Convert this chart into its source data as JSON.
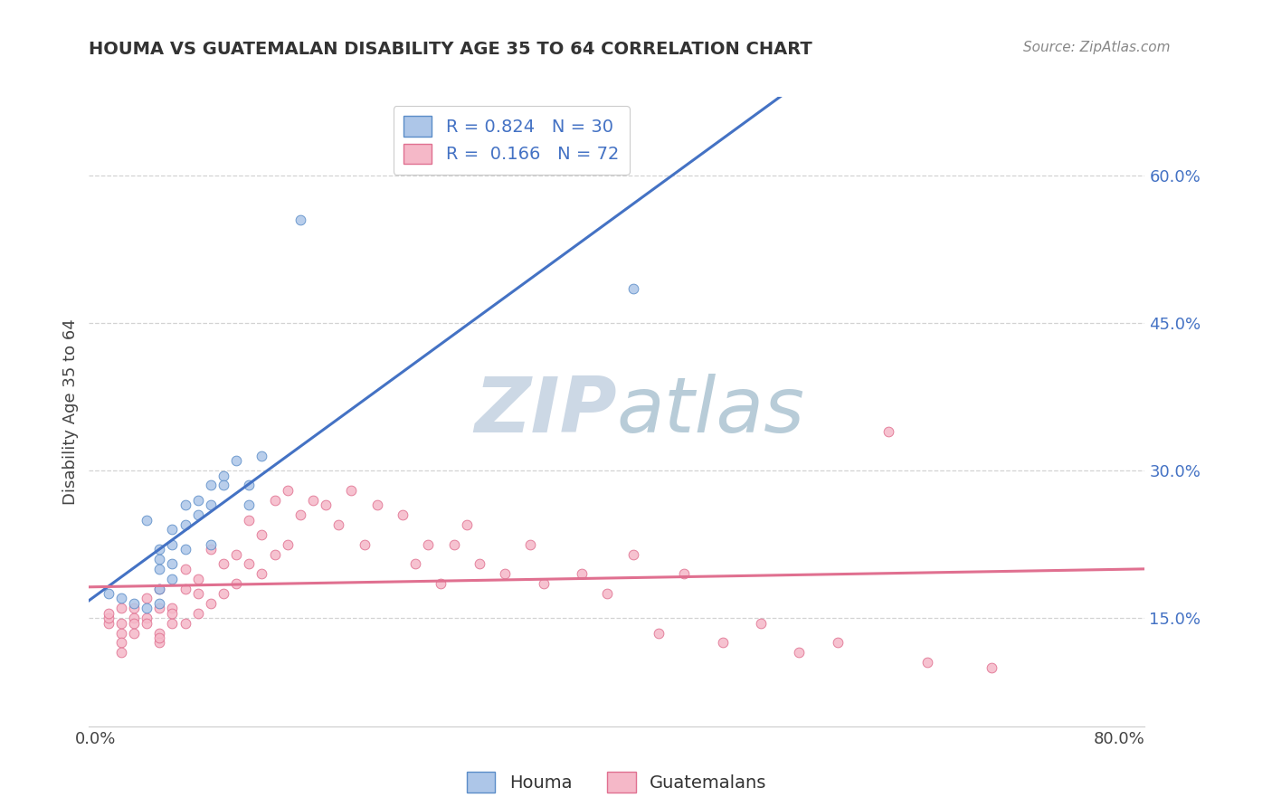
{
  "title": "HOUMA VS GUATEMALAN DISABILITY AGE 35 TO 64 CORRELATION CHART",
  "source_text": "Source: ZipAtlas.com",
  "ylabel": "Disability Age 35 to 64",
  "y_ticks": [
    0.15,
    0.3,
    0.45,
    0.6
  ],
  "y_tick_labels": [
    "15.0%",
    "30.0%",
    "45.0%",
    "60.0%"
  ],
  "xlim": [
    -0.005,
    0.82
  ],
  "ylim": [
    0.04,
    0.68
  ],
  "houma_R": 0.824,
  "houma_N": 30,
  "guatemalan_R": 0.166,
  "guatemalan_N": 72,
  "houma_color": "#adc6e8",
  "houma_edge_color": "#5b8dc8",
  "houma_line_color": "#4472c4",
  "guatemalan_color": "#f5b8c8",
  "guatemalan_edge_color": "#e07090",
  "guatemalan_line_color": "#e07090",
  "background_color": "#ffffff",
  "grid_color": "#c8c8c8",
  "watermark_zip": "ZIP",
  "watermark_atlas": "atlas",
  "watermark_color_zip": "#c8d8e8",
  "watermark_color_atlas": "#b0c8d8",
  "legend_label_houma": "Houma",
  "legend_label_guatemalan": "Guatemalans",
  "houma_scatter_x": [
    0.01,
    0.02,
    0.03,
    0.04,
    0.04,
    0.05,
    0.05,
    0.05,
    0.05,
    0.05,
    0.06,
    0.06,
    0.06,
    0.06,
    0.07,
    0.07,
    0.07,
    0.08,
    0.08,
    0.09,
    0.09,
    0.09,
    0.1,
    0.1,
    0.11,
    0.12,
    0.12,
    0.13,
    0.16,
    0.42
  ],
  "houma_scatter_y": [
    0.175,
    0.17,
    0.165,
    0.16,
    0.25,
    0.21,
    0.22,
    0.2,
    0.165,
    0.18,
    0.24,
    0.225,
    0.205,
    0.19,
    0.265,
    0.245,
    0.22,
    0.255,
    0.27,
    0.285,
    0.265,
    0.225,
    0.295,
    0.285,
    0.31,
    0.285,
    0.265,
    0.315,
    0.555,
    0.485
  ],
  "guatemalan_scatter_x": [
    0.01,
    0.01,
    0.01,
    0.02,
    0.02,
    0.02,
    0.02,
    0.02,
    0.03,
    0.03,
    0.03,
    0.03,
    0.04,
    0.04,
    0.04,
    0.05,
    0.05,
    0.05,
    0.05,
    0.05,
    0.06,
    0.06,
    0.06,
    0.07,
    0.07,
    0.07,
    0.08,
    0.08,
    0.08,
    0.09,
    0.09,
    0.1,
    0.1,
    0.11,
    0.11,
    0.12,
    0.12,
    0.13,
    0.13,
    0.14,
    0.14,
    0.15,
    0.15,
    0.16,
    0.17,
    0.18,
    0.19,
    0.2,
    0.21,
    0.22,
    0.24,
    0.25,
    0.26,
    0.27,
    0.28,
    0.29,
    0.3,
    0.32,
    0.34,
    0.35,
    0.38,
    0.4,
    0.42,
    0.44,
    0.46,
    0.49,
    0.52,
    0.55,
    0.58,
    0.62,
    0.65,
    0.7
  ],
  "guatemalan_scatter_y": [
    0.145,
    0.15,
    0.155,
    0.135,
    0.145,
    0.16,
    0.125,
    0.115,
    0.15,
    0.145,
    0.16,
    0.135,
    0.15,
    0.145,
    0.17,
    0.135,
    0.16,
    0.18,
    0.125,
    0.13,
    0.145,
    0.16,
    0.155,
    0.18,
    0.2,
    0.145,
    0.19,
    0.175,
    0.155,
    0.22,
    0.165,
    0.205,
    0.175,
    0.215,
    0.185,
    0.25,
    0.205,
    0.235,
    0.195,
    0.27,
    0.215,
    0.28,
    0.225,
    0.255,
    0.27,
    0.265,
    0.245,
    0.28,
    0.225,
    0.265,
    0.255,
    0.205,
    0.225,
    0.185,
    0.225,
    0.245,
    0.205,
    0.195,
    0.225,
    0.185,
    0.195,
    0.175,
    0.215,
    0.135,
    0.195,
    0.125,
    0.145,
    0.115,
    0.125,
    0.34,
    0.105,
    0.1
  ]
}
